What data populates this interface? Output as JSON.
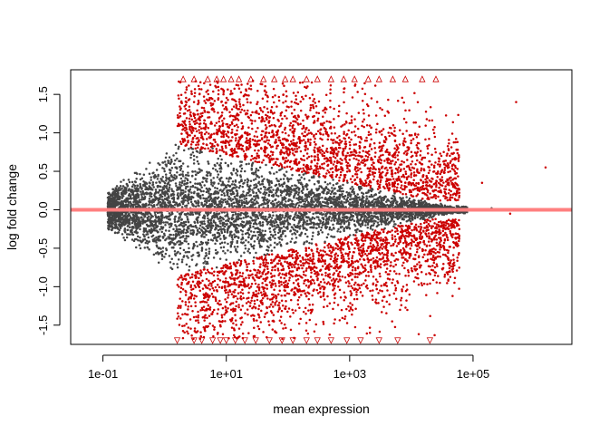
{
  "chart_data": {
    "type": "scatter",
    "title": "",
    "xlabel": "mean expression",
    "ylabel": "log fold change",
    "x_scale": "log10",
    "xlim": [
      0.03,
      4000000
    ],
    "ylim": [
      -1.75,
      1.82
    ],
    "x_ticks": [
      {
        "value": 0.1,
        "label": "1e-01"
      },
      {
        "value": 10,
        "label": "1e+01"
      },
      {
        "value": 1000,
        "label": "1e+03"
      },
      {
        "value": 100000,
        "label": "1e+05"
      }
    ],
    "y_ticks": [
      {
        "value": -1.5,
        "label": "-1.5"
      },
      {
        "value": -1.0,
        "label": "-1.0"
      },
      {
        "value": -0.5,
        "label": "-0.5"
      },
      {
        "value": 0.0,
        "label": "0.0"
      },
      {
        "value": 0.5,
        "label": "0.5"
      },
      {
        "value": 1.0,
        "label": "1.0"
      },
      {
        "value": 1.5,
        "label": "1.5"
      }
    ],
    "grid": false,
    "legend": "none",
    "reference_line": {
      "y": 0,
      "color": "#ff6a6a"
    },
    "colors": {
      "not_significant": "#444444",
      "significant": "#cc0000",
      "reference": "#ff7f7f"
    },
    "series": [
      {
        "kind": "not-significant",
        "points": [
          [
            0.12,
            0.05
          ],
          [
            0.13,
            -0.1
          ],
          [
            0.15,
            0.12
          ],
          [
            0.18,
            -0.05
          ],
          [
            0.2,
            0.2
          ],
          [
            0.25,
            -0.15
          ],
          [
            0.3,
            0.3
          ],
          [
            0.35,
            -0.25
          ],
          [
            0.4,
            0.1
          ],
          [
            0.5,
            0.35
          ],
          [
            0.6,
            -0.3
          ],
          [
            0.7,
            0.45
          ],
          [
            0.8,
            -0.4
          ],
          [
            1.0,
            0.5
          ],
          [
            1.2,
            -0.45
          ],
          [
            1.5,
            0.55
          ],
          [
            1.8,
            -0.5
          ],
          [
            2.0,
            0.6
          ],
          [
            2.5,
            -0.55
          ],
          [
            3.0,
            0.7
          ],
          [
            3.5,
            -0.6
          ],
          [
            4.0,
            0.75
          ],
          [
            5.0,
            -0.7
          ],
          [
            6.0,
            0.8
          ],
          [
            7.0,
            -0.75
          ],
          [
            8.0,
            0.7
          ],
          [
            10.0,
            -0.65
          ],
          [
            12.0,
            0.6
          ],
          [
            15.0,
            -0.55
          ],
          [
            20.0,
            0.5
          ],
          [
            25.0,
            -0.45
          ],
          [
            30.0,
            0.4
          ],
          [
            40.0,
            -0.35
          ],
          [
            50.0,
            0.32
          ],
          [
            70.0,
            -0.3
          ],
          [
            100.0,
            0.25
          ],
          [
            150.0,
            -0.22
          ],
          [
            200.0,
            0.2
          ],
          [
            300.0,
            -0.18
          ],
          [
            500.0,
            0.15
          ],
          [
            800.0,
            -0.13
          ],
          [
            1200.0,
            0.12
          ],
          [
            2000.0,
            -0.1
          ],
          [
            3000.0,
            0.09
          ],
          [
            5000.0,
            -0.08
          ],
          [
            8000.0,
            0.07
          ],
          [
            12000.0,
            -0.06
          ],
          [
            20000.0,
            0.05
          ],
          [
            40000.0,
            -0.04
          ],
          [
            80000.0,
            0.03
          ],
          [
            200000.0,
            0.02
          ],
          [
            0.15,
            0.0
          ],
          [
            1.0,
            0.0
          ],
          [
            10.0,
            0.0
          ],
          [
            100.0,
            0.0
          ]
        ]
      },
      {
        "kind": "significant",
        "points": [
          [
            1.7,
            1.2
          ],
          [
            2.2,
            1.1
          ],
          [
            3.0,
            1.4
          ],
          [
            4.0,
            1.0
          ],
          [
            6.0,
            1.3
          ],
          [
            9.0,
            1.5
          ],
          [
            14.0,
            1.2
          ],
          [
            20.0,
            1.0
          ],
          [
            35.0,
            0.9
          ],
          [
            60.0,
            1.1
          ],
          [
            100.0,
            0.8
          ],
          [
            180.0,
            0.7
          ],
          [
            300.0,
            0.6
          ],
          [
            600.0,
            0.55
          ],
          [
            1000.0,
            0.5
          ],
          [
            2000.0,
            0.45
          ],
          [
            4000.0,
            0.4
          ],
          [
            8000.0,
            0.35
          ],
          [
            15000.0,
            0.3
          ],
          [
            30000.0,
            0.25
          ],
          [
            60000.0,
            0.22
          ],
          [
            1.7,
            -1.0
          ],
          [
            2.5,
            -1.2
          ],
          [
            3.5,
            -1.4
          ],
          [
            5.0,
            -1.1
          ],
          [
            8.0,
            -1.5
          ],
          [
            12.0,
            -1.3
          ],
          [
            20.0,
            -1.0
          ],
          [
            40.0,
            -0.9
          ],
          [
            70.0,
            -1.1
          ],
          [
            120.0,
            -0.8
          ],
          [
            250.0,
            -0.7
          ],
          [
            500.0,
            -0.6
          ],
          [
            1000.0,
            -0.55
          ],
          [
            2000.0,
            -0.5
          ],
          [
            4000.0,
            -0.45
          ],
          [
            8000.0,
            -0.4
          ],
          [
            15000.0,
            -0.35
          ],
          [
            30000.0,
            -0.3
          ],
          [
            60000.0,
            -0.25
          ],
          [
            140000.0,
            0.35
          ],
          [
            500000.0,
            1.4
          ],
          [
            1500000.0,
            0.55
          ],
          [
            400000.0,
            -0.05
          ]
        ]
      },
      {
        "kind": "out-of-range-up",
        "marker": "triangle-up",
        "points": [
          [
            2.0,
            1.7
          ],
          [
            3.0,
            1.7
          ],
          [
            5.0,
            1.7
          ],
          [
            7.0,
            1.7
          ],
          [
            9.0,
            1.7
          ],
          [
            12.0,
            1.7
          ],
          [
            16.0,
            1.7
          ],
          [
            25.0,
            1.7
          ],
          [
            40.0,
            1.7
          ],
          [
            60.0,
            1.7
          ],
          [
            90.0,
            1.7
          ],
          [
            120.0,
            1.7
          ],
          [
            200.0,
            1.7
          ],
          [
            300.0,
            1.7
          ],
          [
            500.0,
            1.7
          ],
          [
            800.0,
            1.7
          ],
          [
            1200.0,
            1.7
          ],
          [
            2000.0,
            1.7
          ],
          [
            3000.0,
            1.7
          ],
          [
            5000.0,
            1.7
          ],
          [
            8000.0,
            1.7
          ],
          [
            15000.0,
            1.7
          ],
          [
            25000.0,
            1.7
          ]
        ]
      },
      {
        "kind": "out-of-range-down",
        "marker": "triangle-down",
        "points": [
          [
            1.6,
            -1.7
          ],
          [
            3.0,
            -1.7
          ],
          [
            4.0,
            -1.7
          ],
          [
            6.0,
            -1.7
          ],
          [
            8.0,
            -1.7
          ],
          [
            10.0,
            -1.7
          ],
          [
            14.0,
            -1.7
          ],
          [
            20.0,
            -1.7
          ],
          [
            30.0,
            -1.7
          ],
          [
            50.0,
            -1.7
          ],
          [
            80.0,
            -1.7
          ],
          [
            120.0,
            -1.7
          ],
          [
            200.0,
            -1.7
          ],
          [
            300.0,
            -1.7
          ],
          [
            500.0,
            -1.7
          ],
          [
            900.0,
            -1.7
          ],
          [
            1500.0,
            -1.7
          ],
          [
            3000.0,
            -1.7
          ],
          [
            6000.0,
            -1.7
          ],
          [
            20000.0,
            -1.7
          ]
        ]
      }
    ]
  }
}
